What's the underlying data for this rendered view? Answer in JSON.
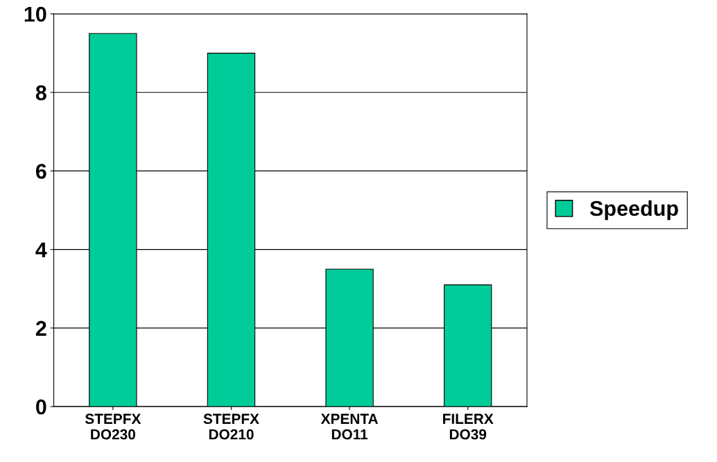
{
  "chart_data": {
    "type": "bar",
    "categories": [
      "STEPFX\nDO230",
      "STEPFX\nDO210",
      "XPENTA\nDO11",
      "FILERX\nDO39"
    ],
    "series": [
      {
        "name": "Speedup",
        "color": "#00cc99",
        "values": [
          9.5,
          9.0,
          3.5,
          3.1
        ]
      }
    ],
    "ylim": [
      0,
      10
    ],
    "yticks": [
      0,
      2,
      4,
      6,
      8,
      10
    ],
    "grid": "y",
    "legend": "right"
  }
}
